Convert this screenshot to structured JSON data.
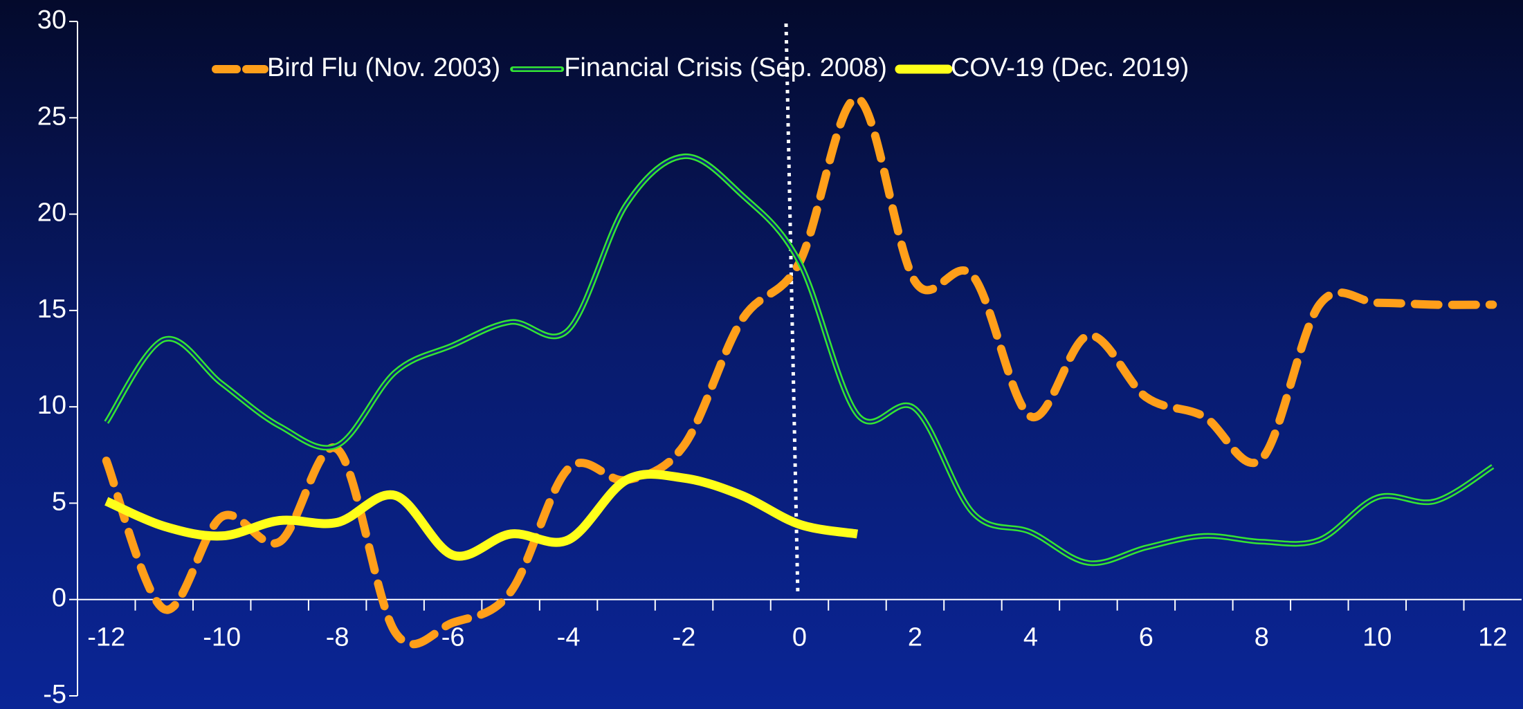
{
  "chart_data": {
    "type": "line",
    "x": [
      -12,
      -11,
      -10,
      -9,
      -8,
      -7,
      -6,
      -5,
      -4,
      -3,
      -2,
      -1,
      0,
      1,
      2,
      3,
      4,
      5,
      6,
      7,
      8,
      9,
      10,
      11,
      12
    ],
    "series": [
      {
        "name": "Bird Flu (Nov. 2003)",
        "color": "#ff9f1a",
        "style": "dashed",
        "values": [
          7.2,
          -0.5,
          4.3,
          3,
          7.8,
          -1.7,
          -1.2,
          0.4,
          6.8,
          6.2,
          8,
          14.5,
          17.5,
          26,
          16.5,
          16.8,
          9.5,
          13.7,
          10.5,
          9.5,
          7.3,
          15.3,
          15.4,
          15.3,
          15.3
        ]
      },
      {
        "name": "Financial Crisis (Sep. 2008)",
        "color": "#33e633",
        "style": "double",
        "values": [
          9.2,
          13.5,
          11.2,
          9,
          8,
          11.8,
          13.2,
          14.4,
          14,
          20.5,
          23,
          21,
          17.5,
          9.6,
          9.9,
          4.5,
          3.5,
          1.9,
          2.7,
          3.3,
          3,
          3.1,
          5.3,
          5.1,
          6.9
        ]
      },
      {
        "name": "COV-19 (Dec. 2019)",
        "color": "#ffff1a",
        "style": "solid",
        "values": [
          5.1,
          3.8,
          3.3,
          4.1,
          4,
          5.4,
          2.3,
          3.4,
          3.1,
          6.2,
          6.3,
          5.4,
          3.9,
          3.4,
          null,
          null,
          null,
          null,
          null,
          null,
          null,
          null,
          null,
          null,
          null
        ]
      }
    ],
    "xlim": [
      -12.5,
      12.5
    ],
    "xticks": [
      -12,
      -10,
      -8,
      -6,
      -4,
      -2,
      0,
      2,
      4,
      6,
      8,
      10,
      12
    ],
    "ylim": [
      -5,
      30
    ],
    "yticks": [
      -5,
      0,
      5,
      10,
      15,
      20,
      25,
      30
    ],
    "legend": "top"
  }
}
